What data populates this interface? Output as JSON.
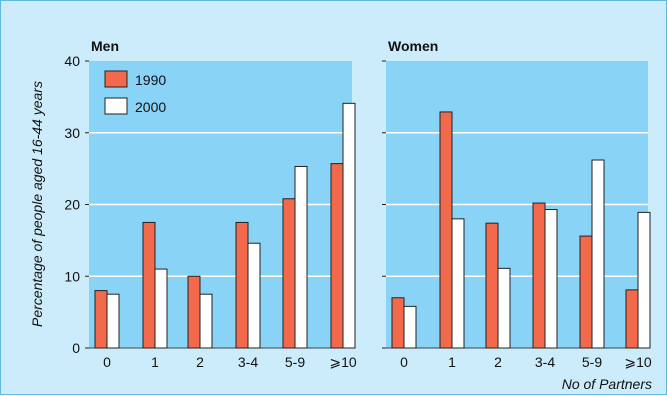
{
  "chart_data": {
    "type": "bar",
    "ylabel": "Percentage of people aged 16-44 years",
    "xlabel": "No of Partners",
    "ylim": [
      0,
      40
    ],
    "yticks": [
      "0",
      "10",
      "20",
      "30",
      "40"
    ],
    "grid": true,
    "legend": {
      "placement": "top-left",
      "entries": [
        "1990",
        "2000"
      ]
    },
    "colors": {
      "1990": "#f26a4b",
      "2000": "#ffffff",
      "plot_bg": "#88d3f6",
      "figure_bg": "#ccecfb",
      "border": "#5fb8dd"
    },
    "panels": [
      {
        "title": "Men",
        "categories": [
          "0",
          "1",
          "2",
          "3-4",
          "5-9",
          "⩾10"
        ],
        "series": [
          {
            "name": "1990",
            "values": [
              8,
              17.5,
              10,
              17.5,
              20.8,
              25.7
            ]
          },
          {
            "name": "2000",
            "values": [
              7.5,
              11,
              7.5,
              14.6,
              25.3,
              34.1
            ]
          }
        ]
      },
      {
        "title": "Women",
        "categories": [
          "0",
          "1",
          "2",
          "3-4",
          "5-9",
          "⩾10"
        ],
        "series": [
          {
            "name": "1990",
            "values": [
              7,
              32.9,
              17.4,
              20.2,
              15.6,
              8.1
            ]
          },
          {
            "name": "2000",
            "values": [
              5.8,
              18,
              11.1,
              19.3,
              26.2,
              18.9
            ]
          }
        ]
      }
    ]
  }
}
